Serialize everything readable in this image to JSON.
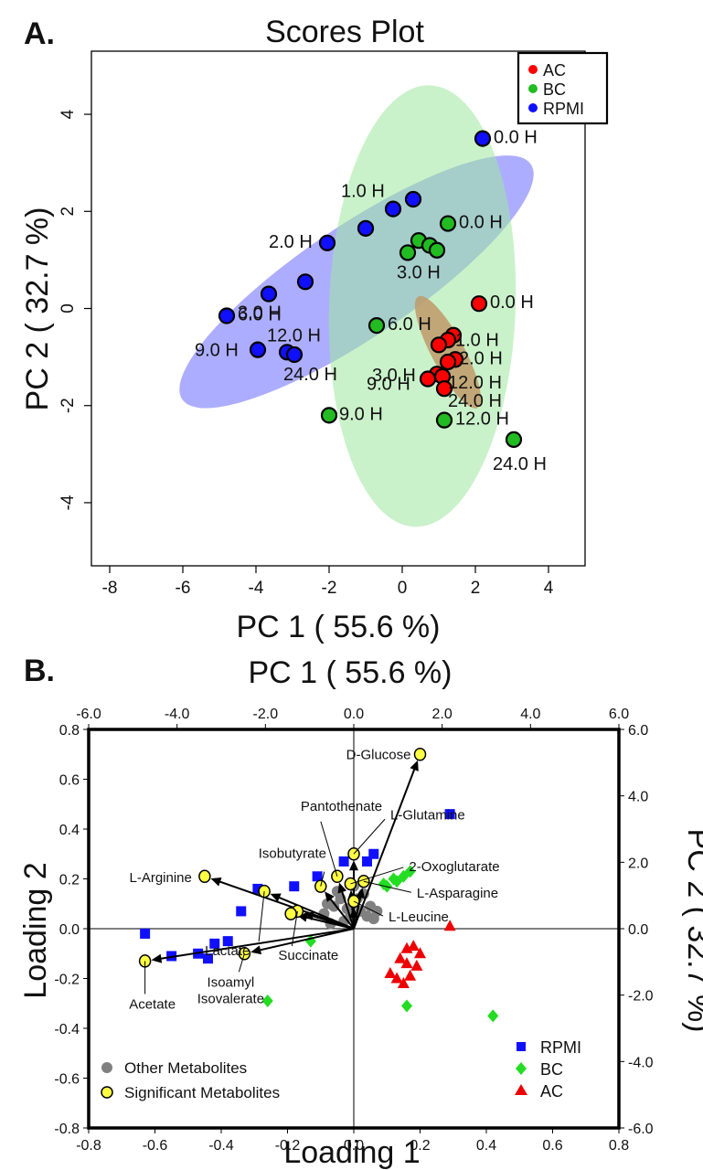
{
  "panels": {
    "a": {
      "letter": "A.",
      "title": "Scores Plot",
      "xlabel": "PC 1 ( 55.6 %)",
      "ylabel": "PC 2 ( 32.7 %)",
      "x_ticks": [
        "-8",
        "-6",
        "-4",
        "-2",
        "0",
        "2",
        "4"
      ],
      "y_ticks": [
        "4",
        "2",
        "0",
        "-2",
        "-4"
      ],
      "legend": [
        {
          "label": "AC",
          "color": "#ff0000"
        },
        {
          "label": "BC",
          "color": "#22bb22"
        },
        {
          "label": "RPMI",
          "color": "#1010ff"
        }
      ]
    },
    "b": {
      "letter": "B.",
      "top_xlabel": "PC 1 ( 55.6 %)",
      "xlabel": "Loading 1",
      "ylabel": "Loading 2",
      "right_ylabel": "PC 2 ( 32.7 %)",
      "x_ticks": [
        "-0.8",
        "-0.6",
        "-0.4",
        "-0.2",
        "0.0",
        "0.2",
        "0.4",
        "0.6",
        "0.8"
      ],
      "y_ticks": [
        "0.8",
        "0.6",
        "0.4",
        "0.2",
        "0.0",
        "-0.2",
        "-0.4",
        "-0.6",
        "-0.8"
      ],
      "top_x_ticks": [
        "-6.0",
        "-4.0",
        "-2.0",
        "0.0",
        "2.0",
        "4.0",
        "6.0"
      ],
      "right_y_ticks": [
        "6.0",
        "4.0",
        "2.0",
        "0.0",
        "-2.0",
        "-4.0",
        "-6.0"
      ],
      "legend_left": [
        {
          "label": "Other Metabolites",
          "color": "#808080"
        },
        {
          "label": "Significant Metabolites",
          "color": "#ffff44"
        }
      ],
      "legend_right": [
        {
          "label": "RPMI",
          "color": "#1010ff",
          "marker": "square"
        },
        {
          "label": "BC",
          "color": "#22dd22",
          "marker": "diamond"
        },
        {
          "label": "AC",
          "color": "#ee0000",
          "marker": "triangle"
        }
      ]
    }
  },
  "chart_data": [
    {
      "type": "scatter",
      "title": "Scores Plot",
      "xlabel": "PC 1 ( 55.6 %)",
      "ylabel": "PC 2 ( 32.7 %)",
      "xlim": [
        -8.5,
        5.0
      ],
      "ylim": [
        -5.3,
        5.3
      ],
      "x_ticks": [
        -8,
        -6,
        -4,
        -2,
        0,
        2,
        4
      ],
      "y_ticks": [
        -4,
        -2,
        0,
        2,
        4
      ],
      "legend_position": "top-right",
      "series": [
        {
          "name": "AC",
          "color": "#ff0000",
          "points": [
            {
              "x": 2.1,
              "y": 0.1,
              "label": "0.0 H"
            },
            {
              "x": 1.4,
              "y": -0.55,
              "label": "1.0 H"
            },
            {
              "x": 1.25,
              "y": -0.65,
              "label": ""
            },
            {
              "x": 1.0,
              "y": -0.75,
              "label": ""
            },
            {
              "x": 1.45,
              "y": -1.05,
              "label": "2.0 H"
            },
            {
              "x": 1.25,
              "y": -1.1,
              "label": ""
            },
            {
              "x": 0.95,
              "y": -1.35,
              "label": "3.0 H"
            },
            {
              "x": 0.7,
              "y": -1.45,
              "label": "9.0 H"
            },
            {
              "x": 1.1,
              "y": -1.4,
              "label": "12.0 H"
            },
            {
              "x": 1.15,
              "y": -1.65,
              "label": "24.0 H"
            }
          ]
        },
        {
          "name": "BC",
          "color": "#22bb22",
          "points": [
            {
              "x": 1.25,
              "y": 1.75,
              "label": "0.0 H"
            },
            {
              "x": 0.45,
              "y": 1.4,
              "label": ""
            },
            {
              "x": 0.75,
              "y": 1.3,
              "label": ""
            },
            {
              "x": 0.95,
              "y": 1.2,
              "label": ""
            },
            {
              "x": 0.15,
              "y": 1.15,
              "label": "3.0 H"
            },
            {
              "x": -0.7,
              "y": -0.35,
              "label": "6.0 H"
            },
            {
              "x": -2.0,
              "y": -2.2,
              "label": "9.0 H"
            },
            {
              "x": 1.15,
              "y": -2.3,
              "label": "12.0 H"
            },
            {
              "x": 3.05,
              "y": -2.7,
              "label": "24.0 H"
            }
          ]
        },
        {
          "name": "RPMI",
          "color": "#1010ff",
          "points": [
            {
              "x": 2.2,
              "y": 3.5,
              "label": "0.0 H"
            },
            {
              "x": 0.3,
              "y": 2.25,
              "label": ""
            },
            {
              "x": -0.25,
              "y": 2.05,
              "label": "1.0 H"
            },
            {
              "x": -1.0,
              "y": 1.65,
              "label": ""
            },
            {
              "x": -2.05,
              "y": 1.35,
              "label": "2.0 H"
            },
            {
              "x": -2.65,
              "y": 0.55,
              "label": ""
            },
            {
              "x": -3.65,
              "y": 0.3,
              "label": "3.0 H"
            },
            {
              "x": -4.8,
              "y": -0.15,
              "label": "6.0 H"
            },
            {
              "x": -3.95,
              "y": -0.85,
              "label": "9.0 H"
            },
            {
              "x": -3.15,
              "y": -0.9,
              "label": "12.0 H"
            },
            {
              "x": -2.95,
              "y": -0.95,
              "label": "24.0 H"
            }
          ]
        }
      ],
      "ellipses": [
        {
          "group": "RPMI",
          "cx": -1.25,
          "cy": 0.55,
          "rx": 5.75,
          "ry": 1.15,
          "angle_deg": 34,
          "color": "#6a6aff"
        },
        {
          "group": "BC",
          "cx": 0.55,
          "cy": 0.05,
          "rx": 2.55,
          "ry": 4.55,
          "angle_deg": -2,
          "color": "#9ee79e"
        },
        {
          "group": "AC",
          "cx": 1.25,
          "cy": -0.9,
          "rx": 0.45,
          "ry": 1.3,
          "angle_deg": 28,
          "color": "#bf9a6a"
        }
      ]
    },
    {
      "type": "scatter",
      "title": "",
      "xlabel": "Loading 1",
      "ylabel": "Loading 2",
      "secondary_xlabel": "PC 1 ( 55.6 %)",
      "secondary_ylabel": "PC 2 ( 32.7 %)",
      "xlim": [
        -0.8,
        0.8
      ],
      "ylim": [
        -0.8,
        0.8
      ],
      "secondary_xlim": [
        -6.0,
        6.0
      ],
      "secondary_ylim": [
        -6.0,
        6.0
      ],
      "legend_position": "bottom-left and bottom-right",
      "scores": [
        {
          "name": "RPMI",
          "marker": "square",
          "color": "#1010ff",
          "x": [
            0.29,
            0.06,
            0.04,
            -0.03,
            -0.11,
            -0.18,
            -0.29,
            -0.34,
            -0.38,
            -0.42,
            -0.44,
            -0.47,
            -0.55,
            -0.63
          ],
          "y": [
            0.46,
            0.3,
            0.27,
            0.27,
            0.21,
            0.17,
            0.16,
            0.07,
            -0.05,
            -0.06,
            -0.12,
            -0.1,
            -0.11,
            -0.02
          ]
        },
        {
          "name": "BC",
          "marker": "diamond",
          "color": "#22dd22",
          "x": [
            0.17,
            0.15,
            0.13,
            0.12,
            0.1,
            0.09,
            -0.13,
            0.42,
            0.16,
            -0.26
          ],
          "y": [
            0.23,
            0.21,
            0.19,
            0.2,
            0.17,
            0.18,
            -0.05,
            -0.35,
            -0.31,
            -0.29
          ]
        },
        {
          "name": "AC",
          "marker": "triangle",
          "color": "#ee0000",
          "x": [
            0.29,
            0.16,
            0.18,
            0.2,
            0.14,
            0.11,
            0.16,
            0.19,
            0.13,
            0.17,
            0.15
          ],
          "y": [
            0.01,
            -0.08,
            -0.07,
            -0.1,
            -0.12,
            -0.18,
            -0.14,
            -0.15,
            -0.2,
            -0.19,
            -0.22
          ]
        }
      ],
      "other_metabolites": {
        "x": [
          -0.09,
          -0.06,
          -0.04,
          -0.02,
          0.0,
          0.02,
          0.04,
          0.06,
          -0.07,
          -0.03,
          0.01,
          0.05,
          -0.05,
          0.03,
          -0.01,
          0.07,
          -0.08,
          0.0
        ],
        "y": [
          0.06,
          0.09,
          0.12,
          0.08,
          0.1,
          0.07,
          0.05,
          0.04,
          0.02,
          0.03,
          0.12,
          0.09,
          0.15,
          0.14,
          0.05,
          0.07,
          0.1,
          0.17
        ]
      },
      "significant_metabolites": [
        {
          "name": "D-Glucose",
          "x": 0.2,
          "y": 0.7
        },
        {
          "name": "L-Glutamine",
          "x": 0.0,
          "y": 0.3
        },
        {
          "name": "Pantothenate",
          "x": -0.05,
          "y": 0.21
        },
        {
          "name": "2-Oxoglutarate",
          "x": -0.01,
          "y": 0.18
        },
        {
          "name": "L-Asparagine",
          "x": 0.03,
          "y": 0.19
        },
        {
          "name": "L-Leucine",
          "x": 0.0,
          "y": 0.11
        },
        {
          "name": "Isobutyrate",
          "x": -0.1,
          "y": 0.17
        },
        {
          "name": "L-Arginine",
          "x": -0.45,
          "y": 0.21
        },
        {
          "name": "Lactate",
          "x": -0.27,
          "y": 0.15
        },
        {
          "name": "Succinate",
          "x": -0.17,
          "y": 0.07
        },
        {
          "name": "Lactate",
          "x": -0.19,
          "y": 0.06
        },
        {
          "name": "Acetate",
          "x": -0.63,
          "y": -0.13
        },
        {
          "name": "Isoamyl Isovalerate",
          "x": -0.33,
          "y": -0.1
        }
      ]
    }
  ]
}
